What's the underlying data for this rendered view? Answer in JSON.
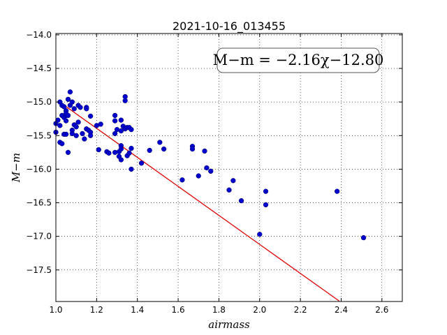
{
  "chart_data": {
    "type": "scatter",
    "title": "2021-10-16_013455",
    "xlabel": "airmass",
    "ylabel": "M−m",
    "xlim": [
      1.0,
      2.7
    ],
    "ylim": [
      -17.97,
      -13.98
    ],
    "y_inverted": true,
    "grid": true,
    "xticks": [
      1.0,
      1.2,
      1.4,
      1.6,
      1.8,
      2.0,
      2.2,
      2.4,
      2.6
    ],
    "xtick_labels": [
      "1.0",
      "1.2",
      "1.4",
      "1.6",
      "1.8",
      "2.0",
      "2.2",
      "2.4",
      "2.6"
    ],
    "yticks": [
      -14.0,
      -14.5,
      -15.0,
      -15.5,
      -16.0,
      -16.5,
      -17.0,
      -17.5
    ],
    "ytick_labels": [
      "−14.0",
      "−14.5",
      "−15.0",
      "−15.5",
      "−16.0",
      "−16.5",
      "−17.0",
      "−17.5"
    ],
    "annotation": "M−m = −2.16χ−12.80",
    "fit": {
      "slope": -2.16,
      "intercept": -12.8,
      "x_range": [
        1.02,
        2.39
      ],
      "color": "#dd0000"
    },
    "point_color": "#0000cc",
    "points": [
      [
        1.0,
        -15.45
      ],
      [
        1.0,
        -15.32
      ],
      [
        1.01,
        -15.27
      ],
      [
        1.02,
        -15.35
      ],
      [
        1.02,
        -15.0
      ],
      [
        1.02,
        -15.6
      ],
      [
        1.03,
        -15.05
      ],
      [
        1.03,
        -15.2
      ],
      [
        1.03,
        -15.62
      ],
      [
        1.04,
        -15.48
      ],
      [
        1.04,
        -15.23
      ],
      [
        1.04,
        -15.07
      ],
      [
        1.05,
        -15.13
      ],
      [
        1.05,
        -15.2
      ],
      [
        1.05,
        -15.17
      ],
      [
        1.05,
        -15.28
      ],
      [
        1.05,
        -15.48
      ],
      [
        1.06,
        -15.75
      ],
      [
        1.06,
        -14.96
      ],
      [
        1.06,
        -15.2
      ],
      [
        1.07,
        -15.05
      ],
      [
        1.07,
        -14.85
      ],
      [
        1.08,
        -15.0
      ],
      [
        1.08,
        -15.42
      ],
      [
        1.08,
        -15.47
      ],
      [
        1.09,
        -15.34
      ],
      [
        1.09,
        -15.1
      ],
      [
        1.1,
        -15.37
      ],
      [
        1.1,
        -15.5
      ],
      [
        1.11,
        -15.05
      ],
      [
        1.11,
        -15.3
      ],
      [
        1.12,
        -15.08
      ],
      [
        1.13,
        -15.47
      ],
      [
        1.14,
        -15.55
      ],
      [
        1.15,
        -15.08
      ],
      [
        1.15,
        -15.1
      ],
      [
        1.15,
        -15.4
      ],
      [
        1.16,
        -15.42
      ],
      [
        1.17,
        -15.45
      ],
      [
        1.17,
        -15.5
      ],
      [
        1.17,
        -15.21
      ],
      [
        1.2,
        -15.35
      ],
      [
        1.21,
        -15.71
      ],
      [
        1.22,
        -15.33
      ],
      [
        1.25,
        -15.74
      ],
      [
        1.26,
        -15.76
      ],
      [
        1.29,
        -15.75
      ],
      [
        1.29,
        -15.47
      ],
      [
        1.29,
        -15.28
      ],
      [
        1.29,
        -15.2
      ],
      [
        1.3,
        -15.41
      ],
      [
        1.31,
        -15.74
      ],
      [
        1.31,
        -15.81
      ],
      [
        1.32,
        -15.65
      ],
      [
        1.32,
        -15.86
      ],
      [
        1.32,
        -15.7
      ],
      [
        1.32,
        -15.43
      ],
      [
        1.32,
        -15.27
      ],
      [
        1.33,
        -15.36
      ],
      [
        1.34,
        -14.92
      ],
      [
        1.34,
        -14.98
      ],
      [
        1.34,
        -15.4
      ],
      [
        1.35,
        -15.8
      ],
      [
        1.35,
        -15.38
      ],
      [
        1.36,
        -15.76
      ],
      [
        1.36,
        -15.38
      ],
      [
        1.37,
        -15.41
      ],
      [
        1.37,
        -15.69
      ],
      [
        1.37,
        -16.0
      ],
      [
        1.42,
        -15.91
      ],
      [
        1.46,
        -15.72
      ],
      [
        1.51,
        -15.6
      ],
      [
        1.53,
        -15.7
      ],
      [
        1.62,
        -16.16
      ],
      [
        1.67,
        -15.66
      ],
      [
        1.67,
        -15.7
      ],
      [
        1.7,
        -16.1
      ],
      [
        1.73,
        -15.73
      ],
      [
        1.74,
        -15.98
      ],
      [
        1.76,
        -16.03
      ],
      [
        1.85,
        -16.31
      ],
      [
        1.87,
        -16.17
      ],
      [
        1.91,
        -16.47
      ],
      [
        2.0,
        -16.97
      ],
      [
        2.03,
        -16.33
      ],
      [
        2.03,
        -16.53
      ],
      [
        2.38,
        -16.33
      ],
      [
        2.51,
        -17.02
      ]
    ]
  }
}
